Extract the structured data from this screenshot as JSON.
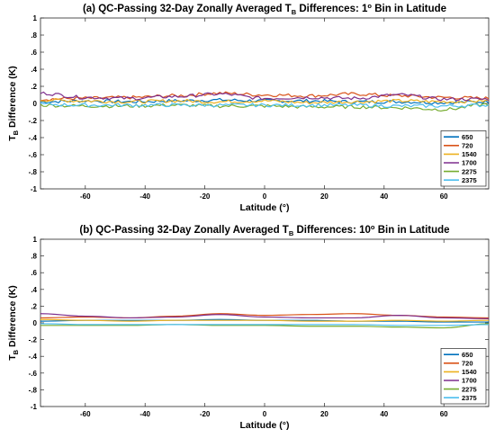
{
  "chart_data": [
    {
      "type": "line",
      "title": "(a) QC-Passing 32-Day Zonally Averaged T",
      "title_sub": "B",
      "title_tail": " Differences: 1",
      "title_deg": "o",
      "title_end": " Bin in Latitude",
      "xlabel": "Latitude (°)",
      "ylabel": "T",
      "ylabel_sub": "B",
      "ylabel_tail": " Difference (K)",
      "xlim": [
        -75,
        75
      ],
      "ylim": [
        -1,
        1
      ],
      "xticks": [
        -60,
        -40,
        -20,
        0,
        20,
        40,
        60
      ],
      "yticks": [
        -1,
        -0.8,
        -0.6,
        -0.4,
        -0.2,
        0,
        0.2,
        0.4,
        0.6,
        0.8,
        1
      ],
      "legend_position": "bottom-right",
      "noisy": true,
      "series": [
        {
          "name": "650",
          "color": "#0072BD",
          "x": [
            -75,
            -60,
            -45,
            -30,
            -15,
            0,
            15,
            30,
            45,
            60,
            75
          ],
          "values": [
            0.02,
            0.03,
            0.02,
            0.03,
            0.04,
            0.03,
            0.03,
            0.02,
            0.02,
            0.01,
            0.02
          ]
        },
        {
          "name": "720",
          "color": "#D95319",
          "x": [
            -75,
            -60,
            -45,
            -30,
            -15,
            0,
            15,
            30,
            45,
            60,
            75
          ],
          "values": [
            0.05,
            0.06,
            0.07,
            0.09,
            0.12,
            0.1,
            0.09,
            0.11,
            0.09,
            0.07,
            0.06
          ]
        },
        {
          "name": "1540",
          "color": "#EDB120",
          "x": [
            -75,
            -60,
            -45,
            -30,
            -15,
            0,
            15,
            30,
            45,
            60,
            75
          ],
          "values": [
            0.04,
            0.03,
            0.02,
            0.03,
            0.02,
            0.03,
            0.01,
            0.02,
            0.03,
            0.02,
            0.03
          ]
        },
        {
          "name": "1700",
          "color": "#7E2F8E",
          "x": [
            -75,
            -60,
            -45,
            -30,
            -15,
            0,
            15,
            30,
            45,
            60,
            75
          ],
          "values": [
            0.12,
            0.07,
            0.06,
            0.08,
            0.11,
            0.06,
            0.07,
            0.06,
            0.1,
            0.05,
            0.05
          ]
        },
        {
          "name": "2275",
          "color": "#77AC30",
          "x": [
            -75,
            -60,
            -45,
            -30,
            -15,
            0,
            15,
            30,
            45,
            60,
            75
          ],
          "values": [
            -0.02,
            -0.03,
            -0.03,
            -0.02,
            -0.03,
            -0.03,
            -0.04,
            -0.04,
            -0.05,
            -0.07,
            -0.01
          ]
        },
        {
          "name": "2375",
          "color": "#4DBEEE",
          "x": [
            -75,
            -60,
            -45,
            -30,
            -15,
            0,
            15,
            30,
            45,
            60,
            75
          ],
          "values": [
            -0.01,
            -0.02,
            -0.02,
            -0.02,
            -0.02,
            -0.02,
            -0.02,
            -0.02,
            -0.03,
            -0.03,
            -0.02
          ]
        }
      ]
    },
    {
      "type": "line",
      "title": "(b) QC-Passing 32-Day Zonally Averaged T",
      "title_sub": "B",
      "title_tail": " Differences: 10",
      "title_deg": "o",
      "title_end": " Bin in Latitude",
      "xlabel": "Latitude (°)",
      "ylabel": "T",
      "ylabel_sub": "B",
      "ylabel_tail": " Difference (K)",
      "xlim": [
        -75,
        75
      ],
      "ylim": [
        -1,
        1
      ],
      "xticks": [
        -60,
        -40,
        -20,
        0,
        20,
        40,
        60
      ],
      "yticks": [
        -1,
        -0.8,
        -0.6,
        -0.4,
        -0.2,
        0,
        0.2,
        0.4,
        0.6,
        0.8,
        1
      ],
      "legend_position": "bottom-right",
      "noisy": false,
      "series": [
        {
          "name": "650",
          "color": "#0072BD",
          "x": [
            -75,
            -60,
            -45,
            -30,
            -15,
            0,
            15,
            30,
            45,
            60,
            75
          ],
          "values": [
            0.02,
            0.03,
            0.03,
            0.03,
            0.04,
            0.03,
            0.03,
            0.02,
            0.02,
            0.01,
            0.01
          ]
        },
        {
          "name": "720",
          "color": "#D95319",
          "x": [
            -75,
            -60,
            -45,
            -30,
            -15,
            0,
            15,
            30,
            45,
            60,
            75
          ],
          "values": [
            0.06,
            0.07,
            0.06,
            0.08,
            0.11,
            0.09,
            0.1,
            0.11,
            0.09,
            0.07,
            0.06
          ]
        },
        {
          "name": "1540",
          "color": "#EDB120",
          "x": [
            -75,
            -60,
            -45,
            -30,
            -15,
            0,
            15,
            30,
            45,
            60,
            75
          ],
          "values": [
            0.04,
            0.03,
            0.02,
            0.03,
            0.03,
            0.03,
            0.02,
            0.02,
            0.03,
            0.02,
            0.03
          ]
        },
        {
          "name": "1700",
          "color": "#7E2F8E",
          "x": [
            -75,
            -60,
            -45,
            -30,
            -15,
            0,
            15,
            30,
            45,
            60,
            75
          ],
          "values": [
            0.11,
            0.08,
            0.06,
            0.07,
            0.1,
            0.07,
            0.06,
            0.06,
            0.09,
            0.06,
            0.05
          ]
        },
        {
          "name": "2275",
          "color": "#77AC30",
          "x": [
            -75,
            -60,
            -45,
            -30,
            -15,
            0,
            15,
            30,
            45,
            60,
            75
          ],
          "values": [
            -0.03,
            -0.03,
            -0.03,
            -0.02,
            -0.03,
            -0.03,
            -0.04,
            -0.04,
            -0.05,
            -0.06,
            -0.01
          ]
        },
        {
          "name": "2375",
          "color": "#4DBEEE",
          "x": [
            -75,
            -60,
            -45,
            -30,
            -15,
            0,
            15,
            30,
            45,
            60,
            75
          ],
          "values": [
            -0.01,
            -0.02,
            -0.02,
            -0.02,
            -0.02,
            -0.02,
            -0.02,
            -0.02,
            -0.03,
            -0.03,
            -0.02
          ]
        }
      ]
    }
  ]
}
